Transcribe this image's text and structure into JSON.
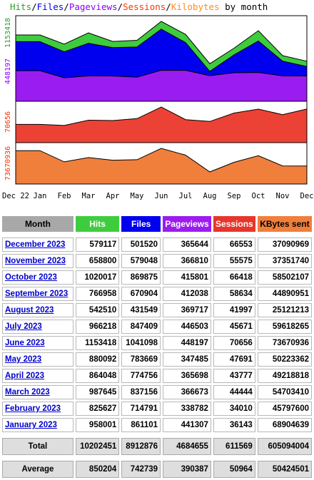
{
  "chart_data": {
    "type": "area",
    "title": {
      "parts": [
        {
          "text": "Hits",
          "color": "#2ca02c"
        },
        {
          "text": "/",
          "color": "#000000"
        },
        {
          "text": "Files",
          "color": "#0000ee"
        },
        {
          "text": "/",
          "color": "#000000"
        },
        {
          "text": "Pageviews",
          "color": "#8b00ff"
        },
        {
          "text": "/",
          "color": "#000000"
        },
        {
          "text": "Sessions",
          "color": "#ff3300"
        },
        {
          "text": "/",
          "color": "#000000"
        },
        {
          "text": "Kilobytes",
          "color": "#ff8c1a"
        },
        {
          "text": " by month",
          "color": "#000000"
        }
      ]
    },
    "x_labels": [
      "Dec 22",
      "Jan",
      "Feb",
      "Mar",
      "Apr",
      "May",
      "Jun",
      "Jul",
      "Aug",
      "Sep",
      "Oct",
      "Nov",
      "Dec"
    ],
    "panels": [
      {
        "axis_label": "1153418",
        "axis_label_color": "#2ca02c",
        "ymax": 1153418,
        "series": [
          {
            "name": "Hits",
            "color": "#3ecc3e",
            "values": [
              958001,
              958001,
              825627,
              987645,
              864048,
              880092,
              1153418,
              966218,
              542510,
              766958,
              1020017,
              658800,
              579117
            ]
          },
          {
            "name": "Files",
            "color": "#0000ee",
            "values": [
              861101,
              861101,
              714791,
              837156,
              774756,
              783669,
              1041098,
              847409,
              431549,
              670904,
              869875,
              579048,
              501520
            ]
          },
          {
            "name": "Pageviews",
            "color": "#9b1cf0",
            "values": [
              441307,
              441307,
              338782,
              366673,
              365698,
              347485,
              448197,
              446503,
              369717,
              412038,
              415801,
              366810,
              365644
            ]
          }
        ]
      },
      {
        "axis_label": "70656",
        "axis_label_color": "#ff3300",
        "ymax": 70656,
        "series": [
          {
            "name": "Sessions",
            "color": "#ec4235",
            "values": [
              36143,
              36143,
              34010,
              44444,
              43777,
              47691,
              70656,
              45671,
              41997,
              58634,
              66418,
              55575,
              66553
            ]
          }
        ]
      },
      {
        "axis_label": "73670936",
        "axis_label_color": "#ff3300",
        "ymax": 73670936,
        "series": [
          {
            "name": "Kilobytes",
            "color": "#f07f3c",
            "values": [
              68904639,
              68904639,
              45797600,
              54703410,
              49218818,
              50223362,
              73670936,
              59618265,
              25121213,
              44890951,
              58502107,
              37351740,
              37090969
            ]
          }
        ]
      }
    ],
    "secondary_label": {
      "text": "448197",
      "color": "#8b00ff"
    }
  },
  "table": {
    "headers": [
      {
        "label": "Month",
        "bg": "#a8a8a8",
        "fg": "#000000"
      },
      {
        "label": "Hits",
        "bg": "#3ecc3e",
        "fg": "#ffffff"
      },
      {
        "label": "Files",
        "bg": "#0000ee",
        "fg": "#ffffff"
      },
      {
        "label": "Pageviews",
        "bg": "#9b1cf0",
        "fg": "#ffffff"
      },
      {
        "label": "Sessions",
        "bg": "#e8352b",
        "fg": "#ffffff"
      },
      {
        "label": "KBytes sent",
        "bg": "#f07f3c",
        "fg": "#000000"
      }
    ],
    "rows": [
      {
        "month": "December 2023",
        "hits": "579117",
        "files": "501520",
        "pageviews": "365644",
        "sessions": "66553",
        "kbytes": "37090969"
      },
      {
        "month": "November 2023",
        "hits": "658800",
        "files": "579048",
        "pageviews": "366810",
        "sessions": "55575",
        "kbytes": "37351740"
      },
      {
        "month": "October 2023",
        "hits": "1020017",
        "files": "869875",
        "pageviews": "415801",
        "sessions": "66418",
        "kbytes": "58502107"
      },
      {
        "month": "September 2023",
        "hits": "766958",
        "files": "670904",
        "pageviews": "412038",
        "sessions": "58634",
        "kbytes": "44890951"
      },
      {
        "month": "August 2023",
        "hits": "542510",
        "files": "431549",
        "pageviews": "369717",
        "sessions": "41997",
        "kbytes": "25121213"
      },
      {
        "month": "July 2023",
        "hits": "966218",
        "files": "847409",
        "pageviews": "446503",
        "sessions": "45671",
        "kbytes": "59618265"
      },
      {
        "month": "June 2023",
        "hits": "1153418",
        "files": "1041098",
        "pageviews": "448197",
        "sessions": "70656",
        "kbytes": "73670936"
      },
      {
        "month": "May 2023",
        "hits": "880092",
        "files": "783669",
        "pageviews": "347485",
        "sessions": "47691",
        "kbytes": "50223362"
      },
      {
        "month": "April 2023",
        "hits": "864048",
        "files": "774756",
        "pageviews": "365698",
        "sessions": "43777",
        "kbytes": "49218818"
      },
      {
        "month": "March 2023",
        "hits": "987645",
        "files": "837156",
        "pageviews": "366673",
        "sessions": "44444",
        "kbytes": "54703410"
      },
      {
        "month": "February 2023",
        "hits": "825627",
        "files": "714791",
        "pageviews": "338782",
        "sessions": "34010",
        "kbytes": "45797600"
      },
      {
        "month": "January 2023",
        "hits": "958001",
        "files": "861101",
        "pageviews": "441307",
        "sessions": "36143",
        "kbytes": "68904639"
      }
    ],
    "total": {
      "label": "Total",
      "hits": "10202451",
      "files": "8912876",
      "pageviews": "4684655",
      "sessions": "611569",
      "kbytes": "605094004"
    },
    "average": {
      "label": "Average",
      "hits": "850204",
      "files": "742739",
      "pageviews": "390387",
      "sessions": "50964",
      "kbytes": "50424501"
    }
  }
}
